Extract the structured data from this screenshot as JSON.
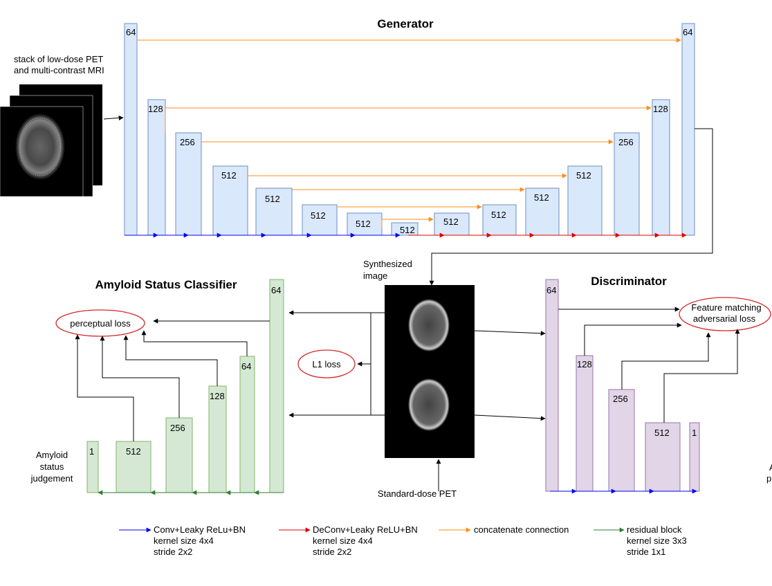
{
  "generator": {
    "title": "Generator",
    "input_label_1": "stack of low-dose PET",
    "input_label_2": "and multi-contrast MRI",
    "blocks": [
      "64",
      "128",
      "256",
      "512",
      "512",
      "512",
      "512",
      "512",
      "512",
      "512",
      "512",
      "512",
      "256",
      "128",
      "64"
    ]
  },
  "synth": {
    "label_1": "Synthesized",
    "label_2": "image"
  },
  "standard": {
    "label": "Standard-dose PET"
  },
  "classifier": {
    "title": "Amyloid Status Classifier",
    "blocks": [
      "1",
      "512",
      "256",
      "128",
      "64",
      "64"
    ],
    "judgement_1": "Amyloid",
    "judgement_2": "status",
    "judgement_3": "judgement",
    "perceptual": "perceptual loss"
  },
  "l1": {
    "label": "L1 loss"
  },
  "discriminator": {
    "title": "Discriminator",
    "blocks": [
      "64",
      "128",
      "256",
      "512",
      "1"
    ],
    "fm_1": "Feature matching",
    "fm_2": "adversarial loss",
    "edge_1": "A",
    "edge_2": "p"
  },
  "legend": {
    "conv_1": "Conv+Leaky ReLu+BN",
    "conv_2": "kernel size 4x4",
    "conv_3": "stride 2x2",
    "deconv_1": "DeConv+Leaky ReLU+BN",
    "deconv_2": "kernel size 4x4",
    "deconv_3": "stride 2x2",
    "concat": "concatenate connection",
    "res_1": "residual block",
    "res_2": "kernel size 3x3",
    "res_3": "stride 1x1"
  },
  "colors": {
    "generator": "#dae8fc",
    "classifier": "#d5e8d4",
    "discriminator": "#e1d5e7",
    "conv_arrow": "#0000ff",
    "deconv_arrow": "#e00000",
    "concat_arrow": "#ff8c1a",
    "residual_arrow": "#2e7d32"
  }
}
